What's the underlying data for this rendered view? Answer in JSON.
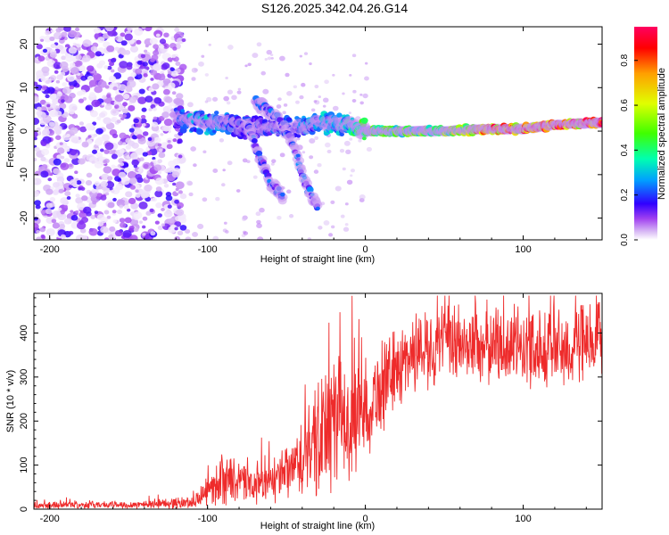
{
  "title": "S126.2025.342.04.26.G14",
  "colors": {
    "snr_line": "#ee2b2b",
    "colormap": [
      "#ffffff",
      "#d8b8f5",
      "#a040f0",
      "#3000ff",
      "#00a0ff",
      "#00ffb0",
      "#40ff00",
      "#e0ff00",
      "#ffa000",
      "#ff0000",
      "#ff0060"
    ]
  },
  "chart_data": [
    {
      "type": "heatmap",
      "xlabel": "Height of straight line (km)",
      "ylabel": "Frequency (Hz)",
      "xlim": [
        -210,
        150
      ],
      "ylim": [
        -25,
        24
      ],
      "x_ticks": [
        -200,
        -100,
        0,
        100
      ],
      "x_tick_labels": [
        "-200",
        "-100",
        "0",
        "100"
      ],
      "y_ticks": [
        -20,
        -10,
        0,
        10,
        20
      ],
      "y_tick_labels": [
        "-20",
        "-10",
        "0",
        "10",
        "20"
      ],
      "colorbar": {
        "label": "Normalized spectral amplitude",
        "range": [
          0,
          0.95
        ],
        "ticks": [
          0.0,
          0.2,
          0.4,
          0.6,
          0.8
        ],
        "tick_labels": [
          "0.0",
          "0.2",
          "0.4",
          "0.6",
          "0.8"
        ]
      },
      "features": [
        {
          "name": "noise",
          "x_range": [
            -210,
            -115
          ],
          "freq_range": [
            -25,
            24
          ],
          "amplitude": 0.15
        },
        {
          "name": "signal_trace",
          "points": [
            [
              -120,
              3
            ],
            [
              -110,
              2.5
            ],
            [
              -100,
              2
            ],
            [
              -90,
              2
            ],
            [
              -80,
              1
            ],
            [
              -70,
              1
            ],
            [
              -40,
              1
            ],
            [
              -30,
              2
            ],
            [
              -10,
              1.5
            ],
            [
              0,
              0
            ],
            [
              20,
              0
            ],
            [
              50,
              0
            ],
            [
              80,
              0.5
            ],
            [
              100,
              0.5
            ],
            [
              120,
              1.5
            ],
            [
              150,
              2
            ]
          ],
          "amplitude": [
            0.2,
            0.3,
            0.3,
            0.25,
            0.2,
            0.2,
            0.25,
            0.3,
            0.35,
            0.5,
            0.5,
            0.55,
            0.9,
            0.85,
            0.9,
            0.95
          ]
        },
        {
          "name": "branch_1",
          "points": [
            [
              -70,
              7
            ],
            [
              -55,
              3
            ],
            [
              -45,
              -4
            ],
            [
              -38,
              -12
            ],
            [
              -30,
              -18
            ]
          ],
          "amplitude": 0.2
        },
        {
          "name": "branch_2",
          "points": [
            [
              -75,
              2
            ],
            [
              -68,
              -5
            ],
            [
              -60,
              -12
            ],
            [
              -52,
              -15
            ]
          ],
          "amplitude": 0.2
        }
      ]
    },
    {
      "type": "line",
      "xlabel": "Height of straight line (km)",
      "ylabel": "SNR (10 * v/v)",
      "xlim": [
        -210,
        150
      ],
      "ylim": [
        0,
        490
      ],
      "x_ticks": [
        -200,
        -100,
        0,
        100
      ],
      "x_tick_labels": [
        "-200",
        "-100",
        "0",
        "100"
      ],
      "y_ticks": [
        0,
        100,
        200,
        300,
        400
      ],
      "y_tick_labels": [
        "0",
        "100",
        "200",
        "300",
        "400"
      ],
      "envelope": [
        {
          "x": -210,
          "mean": 10,
          "spread": 8
        },
        {
          "x": -150,
          "mean": 10,
          "spread": 8
        },
        {
          "x": -110,
          "mean": 15,
          "spread": 15
        },
        {
          "x": -100,
          "mean": 40,
          "spread": 30
        },
        {
          "x": -90,
          "mean": 70,
          "spread": 60
        },
        {
          "x": -80,
          "mean": 60,
          "spread": 45
        },
        {
          "x": -70,
          "mean": 55,
          "spread": 45
        },
        {
          "x": -60,
          "mean": 60,
          "spread": 45
        },
        {
          "x": -50,
          "mean": 80,
          "spread": 60
        },
        {
          "x": -40,
          "mean": 110,
          "spread": 90
        },
        {
          "x": -30,
          "mean": 150,
          "spread": 130
        },
        {
          "x": -20,
          "mean": 200,
          "spread": 160
        },
        {
          "x": -10,
          "mean": 190,
          "spread": 130
        },
        {
          "x": 0,
          "mean": 230,
          "spread": 110
        },
        {
          "x": 10,
          "mean": 270,
          "spread": 100
        },
        {
          "x": 20,
          "mean": 320,
          "spread": 90
        },
        {
          "x": 30,
          "mean": 355,
          "spread": 90
        },
        {
          "x": 40,
          "mean": 370,
          "spread": 90
        },
        {
          "x": 60,
          "mean": 375,
          "spread": 90
        },
        {
          "x": 100,
          "mean": 370,
          "spread": 90
        },
        {
          "x": 120,
          "mean": 365,
          "spread": 95
        },
        {
          "x": 150,
          "mean": 370,
          "spread": 95
        }
      ]
    }
  ]
}
